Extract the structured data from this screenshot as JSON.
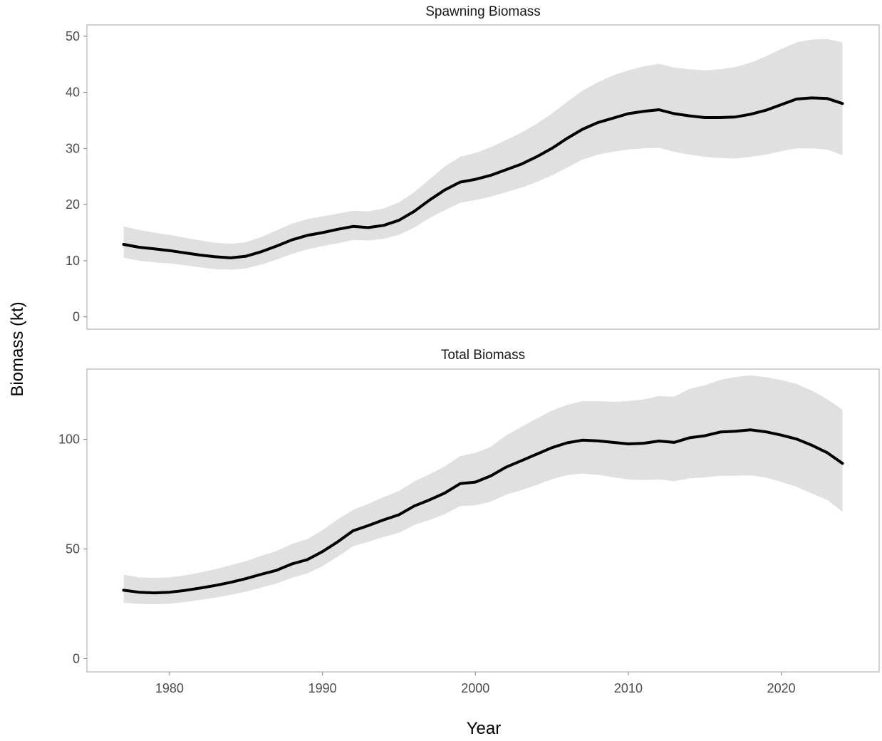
{
  "chart_data": {
    "type": "line",
    "ylabel": "Biomass (kt)",
    "xlabel": "Year",
    "xlim": [
      1974.7,
      1976.0
    ],
    "x_ticks": [
      1980,
      1990,
      2000,
      2010,
      2020
    ],
    "x_tick_labels": [
      "1980",
      "1990",
      "2000",
      "2010",
      "2020"
    ],
    "colors": {
      "line": "#000000",
      "band": "#e0e0e0",
      "frame": "#b3b3b3",
      "text": "#4d4d4d"
    },
    "grid": false,
    "panels": [
      {
        "title": "Spawning Biomass",
        "ylim": [
          -2.2,
          52
        ],
        "y_ticks": [
          0,
          10,
          20,
          30,
          40,
          50
        ],
        "y_tick_labels": [
          "0",
          "10",
          "20",
          "30",
          "40",
          "50"
        ],
        "x": [
          1977,
          1978,
          1979,
          1980,
          1981,
          1982,
          1983,
          1984,
          1985,
          1986,
          1987,
          1988,
          1989,
          1990,
          1991,
          1992,
          1993,
          1994,
          1995,
          1996,
          1997,
          1998,
          1999,
          2000,
          2001,
          2002,
          2003,
          2004,
          2005,
          2006,
          2007,
          2008,
          2009,
          2010,
          2011,
          2012,
          2013,
          2014,
          2015,
          2016,
          2017,
          2018,
          2019,
          2020,
          2021,
          2022,
          2023,
          2024
        ],
        "series": [
          {
            "role": "estimate",
            "values": [
              12.9,
              12.4,
              12.1,
              11.8,
              11.4,
              11.0,
              10.7,
              10.5,
              10.8,
              11.6,
              12.6,
              13.7,
              14.5,
              15.0,
              15.6,
              16.1,
              15.9,
              16.3,
              17.2,
              18.8,
              20.8,
              22.6,
              24.0,
              24.5,
              25.2,
              26.2,
              27.2,
              28.5,
              30.0,
              31.8,
              33.4,
              34.6,
              35.4,
              36.2,
              36.6,
              36.9,
              36.2,
              35.8,
              35.5,
              35.5,
              35.6,
              36.1,
              36.8,
              37.8,
              38.8,
              39.0,
              38.9,
              38.0
            ]
          },
          {
            "role": "lower",
            "values": [
              10.5,
              10.0,
              9.7,
              9.5,
              9.2,
              8.8,
              8.5,
              8.4,
              8.6,
              9.3,
              10.2,
              11.2,
              12.0,
              12.6,
              13.1,
              13.7,
              13.6,
              13.9,
              14.6,
              15.9,
              17.6,
              19.0,
              20.3,
              20.8,
              21.4,
              22.2,
              23.0,
              24.0,
              25.2,
              26.6,
              28.0,
              28.9,
              29.4,
              29.8,
              30.0,
              30.1,
              29.4,
              28.9,
              28.5,
              28.3,
              28.2,
              28.5,
              28.9,
              29.5,
              30.0,
              30.0,
              29.8,
              28.8
            ]
          },
          {
            "role": "upper",
            "values": [
              16.1,
              15.5,
              15.0,
              14.6,
              14.1,
              13.6,
              13.2,
              13.0,
              13.3,
              14.2,
              15.4,
              16.6,
              17.4,
              17.9,
              18.4,
              18.9,
              18.8,
              19.3,
              20.4,
              22.2,
              24.5,
              26.8,
              28.5,
              29.2,
              30.2,
              31.5,
              32.8,
              34.4,
              36.2,
              38.3,
              40.3,
              41.8,
              43.0,
              43.9,
              44.6,
              45.1,
              44.4,
              44.1,
              43.9,
              44.1,
              44.5,
              45.3,
              46.4,
              47.7,
              48.9,
              49.4,
              49.5,
              48.9
            ]
          }
        ]
      },
      {
        "title": "Total Biomass",
        "ylim": [
          -6,
          132
        ],
        "y_ticks": [
          0,
          50,
          100
        ],
        "y_tick_labels": [
          "0",
          "50",
          "100"
        ],
        "x": [
          1977,
          1978,
          1979,
          1980,
          1981,
          1982,
          1983,
          1984,
          1985,
          1986,
          1987,
          1988,
          1989,
          1990,
          1991,
          1992,
          1993,
          1994,
          1995,
          1996,
          1997,
          1998,
          1999,
          2000,
          2001,
          2002,
          2003,
          2004,
          2005,
          2006,
          2007,
          2008,
          2009,
          2010,
          2011,
          2012,
          2013,
          2014,
          2015,
          2016,
          2017,
          2018,
          2019,
          2020,
          2021,
          2022,
          2023,
          2024
        ],
        "series": [
          {
            "role": "estimate",
            "values": [
              31.2,
              30.3,
              30.0,
              30.3,
              31.1,
              32.2,
              33.4,
              34.8,
              36.5,
              38.5,
              40.3,
              43.2,
              45.1,
              48.8,
              53.3,
              58.3,
              60.7,
              63.3,
              65.6,
              69.6,
              72.4,
              75.5,
              79.8,
              80.5,
              83.3,
              87.3,
              90.2,
              93.2,
              96.2,
              98.4,
              99.6,
              99.3,
              98.6,
              97.9,
              98.2,
              99.2,
              98.6,
              100.7,
              101.6,
              103.3,
              103.7,
              104.3,
              103.4,
              101.9,
              100.1,
              97.3,
              93.9,
              89.0
            ]
          },
          {
            "role": "lower",
            "values": [
              25.6,
              25.0,
              24.8,
              25.1,
              25.8,
              26.8,
              27.8,
              29.1,
              30.6,
              32.4,
              34.3,
              36.9,
              38.8,
              42.2,
              46.5,
              51.2,
              53.3,
              55.5,
              57.4,
              61.0,
              63.2,
              65.9,
              69.5,
              69.9,
              71.5,
              74.8,
              76.8,
              79.2,
              81.8,
              83.7,
              84.4,
              83.8,
              82.7,
              81.7,
              81.4,
              81.7,
              80.9,
              82.2,
              82.6,
              83.4,
              83.4,
              83.6,
              82.5,
              80.6,
              78.3,
              75.3,
              72.4,
              67.0
            ]
          },
          {
            "role": "upper",
            "values": [
              38.3,
              37.1,
              36.8,
              37.1,
              38.0,
              39.3,
              40.8,
              42.6,
              44.5,
              46.9,
              49.1,
              52.3,
              54.5,
              58.6,
              63.6,
              67.8,
              70.6,
              73.7,
              76.4,
              80.8,
              84.1,
              87.6,
              92.3,
              93.8,
              96.5,
              101.7,
              105.7,
              109.4,
              113.1,
              115.7,
              117.4,
              117.4,
              117.1,
              117.4,
              118.1,
              119.7,
              119.4,
              123.0,
              124.6,
              127.1,
              128.4,
              129.1,
              128.3,
              127.0,
              125.2,
              122.2,
              118.3,
              113.4
            ]
          }
        ]
      }
    ]
  }
}
